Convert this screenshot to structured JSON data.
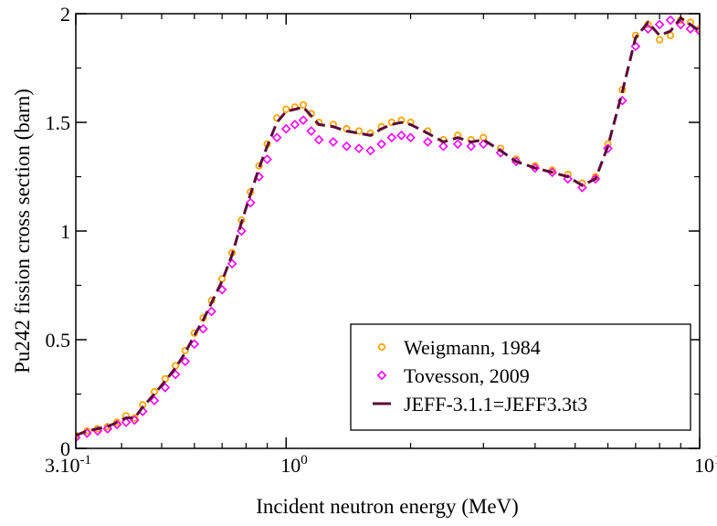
{
  "chart_data": {
    "type": "scatter",
    "xlabel": "Incident neutron energy (MeV)",
    "ylabel": "Pu242 fission cross section (barn)",
    "xscale": "log",
    "xlim": [
      0.31,
      10
    ],
    "ylim": [
      0,
      2
    ],
    "grid": false,
    "legend_position": "bottom-right",
    "x_ticks": [
      {
        "value": 0.31,
        "label": "3.10",
        "exp": "-1"
      },
      {
        "value": 1,
        "label": "10",
        "exp": "0"
      },
      {
        "value": 10,
        "label": "10",
        "exp": "1"
      }
    ],
    "y_ticks": [
      {
        "value": 0,
        "label": "0"
      },
      {
        "value": 0.5,
        "label": "0.5"
      },
      {
        "value": 1,
        "label": "1"
      },
      {
        "value": 1.5,
        "label": "1.5"
      },
      {
        "value": 2,
        "label": "2"
      }
    ],
    "series": [
      {
        "name": "Weigmann, 1984",
        "style": "markers",
        "marker": "circle",
        "color": "#ffa500",
        "x": [
          0.31,
          0.33,
          0.35,
          0.37,
          0.39,
          0.41,
          0.43,
          0.45,
          0.48,
          0.51,
          0.54,
          0.57,
          0.6,
          0.63,
          0.66,
          0.7,
          0.74,
          0.78,
          0.82,
          0.86,
          0.9,
          0.95,
          1.0,
          1.05,
          1.1,
          1.15,
          1.2,
          1.3,
          1.4,
          1.5,
          1.6,
          1.7,
          1.8,
          1.9,
          2.0,
          2.2,
          2.4,
          2.6,
          2.8,
          3.0,
          3.3,
          3.6,
          4.0,
          4.4,
          4.8,
          5.2,
          5.6,
          6.0,
          6.5,
          7.0,
          7.5,
          8.0,
          8.5,
          9.0,
          9.5,
          10.0
        ],
        "y": [
          0.06,
          0.08,
          0.09,
          0.1,
          0.12,
          0.15,
          0.14,
          0.2,
          0.26,
          0.32,
          0.38,
          0.45,
          0.53,
          0.6,
          0.68,
          0.78,
          0.9,
          1.05,
          1.18,
          1.3,
          1.4,
          1.52,
          1.56,
          1.57,
          1.58,
          1.54,
          1.5,
          1.49,
          1.47,
          1.46,
          1.45,
          1.48,
          1.5,
          1.51,
          1.5,
          1.46,
          1.42,
          1.44,
          1.42,
          1.43,
          1.38,
          1.33,
          1.3,
          1.28,
          1.26,
          1.22,
          1.25,
          1.4,
          1.65,
          1.9,
          1.95,
          1.88,
          1.9,
          1.97,
          1.96,
          1.93
        ]
      },
      {
        "name": "Tovesson, 2009",
        "style": "markers",
        "marker": "diamond",
        "color": "#ff00ff",
        "x": [
          0.31,
          0.33,
          0.35,
          0.37,
          0.39,
          0.41,
          0.43,
          0.45,
          0.48,
          0.51,
          0.54,
          0.57,
          0.6,
          0.63,
          0.66,
          0.7,
          0.74,
          0.78,
          0.82,
          0.86,
          0.9,
          0.95,
          1.0,
          1.05,
          1.1,
          1.15,
          1.2,
          1.3,
          1.4,
          1.5,
          1.6,
          1.7,
          1.8,
          1.9,
          2.0,
          2.2,
          2.4,
          2.6,
          2.8,
          3.0,
          3.3,
          3.6,
          4.0,
          4.4,
          4.8,
          5.2,
          5.6,
          6.0,
          6.5,
          7.0,
          7.5,
          8.0,
          8.5,
          9.0,
          9.5,
          10.0
        ],
        "y": [
          0.05,
          0.07,
          0.08,
          0.09,
          0.11,
          0.12,
          0.13,
          0.17,
          0.22,
          0.28,
          0.34,
          0.4,
          0.48,
          0.55,
          0.63,
          0.73,
          0.85,
          1.0,
          1.13,
          1.25,
          1.33,
          1.43,
          1.47,
          1.49,
          1.51,
          1.46,
          1.42,
          1.41,
          1.39,
          1.38,
          1.37,
          1.4,
          1.43,
          1.44,
          1.43,
          1.41,
          1.39,
          1.4,
          1.39,
          1.4,
          1.36,
          1.32,
          1.29,
          1.27,
          1.24,
          1.2,
          1.24,
          1.38,
          1.6,
          1.85,
          1.93,
          1.95,
          1.97,
          1.95,
          1.93,
          1.92
        ]
      },
      {
        "name": "JEFF-3.1.1=JEFF3.3t3",
        "style": "dashed-line",
        "color": "#5a0a3a",
        "x": [
          0.31,
          0.33,
          0.35,
          0.37,
          0.39,
          0.41,
          0.43,
          0.45,
          0.48,
          0.51,
          0.54,
          0.57,
          0.6,
          0.63,
          0.66,
          0.7,
          0.74,
          0.78,
          0.82,
          0.86,
          0.9,
          0.95,
          1.0,
          1.05,
          1.1,
          1.15,
          1.2,
          1.3,
          1.4,
          1.5,
          1.6,
          1.7,
          1.8,
          1.9,
          2.0,
          2.2,
          2.4,
          2.6,
          2.8,
          3.0,
          3.3,
          3.6,
          4.0,
          4.4,
          4.8,
          5.2,
          5.6,
          6.0,
          6.5,
          7.0,
          7.5,
          8.0,
          8.5,
          9.0,
          9.5,
          10.0
        ],
        "y": [
          0.06,
          0.08,
          0.09,
          0.1,
          0.12,
          0.14,
          0.14,
          0.19,
          0.25,
          0.31,
          0.37,
          0.44,
          0.52,
          0.59,
          0.67,
          0.77,
          0.89,
          1.04,
          1.17,
          1.29,
          1.39,
          1.5,
          1.55,
          1.56,
          1.57,
          1.53,
          1.49,
          1.48,
          1.46,
          1.45,
          1.44,
          1.47,
          1.49,
          1.5,
          1.49,
          1.45,
          1.41,
          1.43,
          1.41,
          1.42,
          1.37,
          1.32,
          1.29,
          1.27,
          1.25,
          1.21,
          1.24,
          1.39,
          1.64,
          1.89,
          1.96,
          1.9,
          1.92,
          1.98,
          1.95,
          1.92
        ]
      }
    ]
  }
}
